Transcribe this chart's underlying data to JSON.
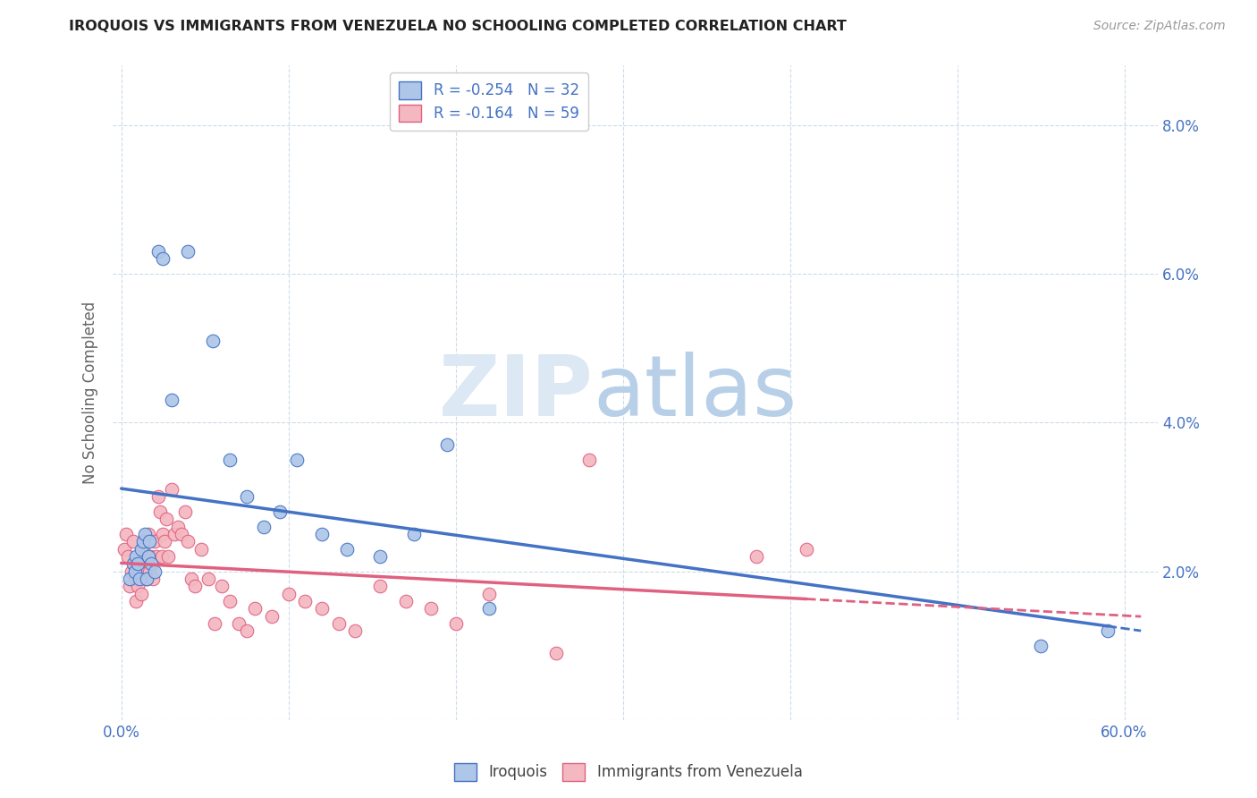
{
  "title": "IROQUOIS VS IMMIGRANTS FROM VENEZUELA NO SCHOOLING COMPLETED CORRELATION CHART",
  "source": "Source: ZipAtlas.com",
  "ylabel": "No Schooling Completed",
  "xlim": [
    -0.005,
    0.62
  ],
  "ylim": [
    0.0,
    0.088
  ],
  "xticks": [
    0.0,
    0.1,
    0.2,
    0.3,
    0.4,
    0.5,
    0.6
  ],
  "xticklabels_left": [
    "0.0%",
    "",
    "",
    "",
    "",
    "",
    "60.0%"
  ],
  "yticks": [
    0.0,
    0.02,
    0.04,
    0.06,
    0.08
  ],
  "ytick_labels_right": [
    "",
    "2.0%",
    "4.0%",
    "6.0%",
    "8.0%"
  ],
  "iroquois_color": "#aec6e8",
  "venezuela_color": "#f4b8c1",
  "iroquois_line_color": "#4472c4",
  "venezuela_line_color": "#e06080",
  "legend_label_blue": "R = -0.254   N = 32",
  "legend_label_pink": "R = -0.164   N = 59",
  "iroquois_x": [
    0.005,
    0.007,
    0.008,
    0.009,
    0.01,
    0.011,
    0.012,
    0.013,
    0.014,
    0.015,
    0.016,
    0.017,
    0.018,
    0.02,
    0.022,
    0.025,
    0.03,
    0.04,
    0.055,
    0.065,
    0.075,
    0.085,
    0.095,
    0.105,
    0.12,
    0.135,
    0.155,
    0.175,
    0.195,
    0.22,
    0.55,
    0.59
  ],
  "iroquois_y": [
    0.019,
    0.021,
    0.02,
    0.022,
    0.021,
    0.019,
    0.023,
    0.024,
    0.025,
    0.019,
    0.022,
    0.024,
    0.021,
    0.02,
    0.063,
    0.062,
    0.043,
    0.063,
    0.051,
    0.035,
    0.03,
    0.026,
    0.028,
    0.035,
    0.025,
    0.023,
    0.022,
    0.025,
    0.037,
    0.015,
    0.01,
    0.012
  ],
  "venezuela_x": [
    0.002,
    0.003,
    0.004,
    0.005,
    0.006,
    0.007,
    0.008,
    0.009,
    0.01,
    0.01,
    0.011,
    0.012,
    0.013,
    0.014,
    0.015,
    0.016,
    0.017,
    0.018,
    0.019,
    0.02,
    0.021,
    0.022,
    0.023,
    0.024,
    0.025,
    0.026,
    0.027,
    0.028,
    0.03,
    0.032,
    0.034,
    0.036,
    0.038,
    0.04,
    0.042,
    0.044,
    0.048,
    0.052,
    0.056,
    0.06,
    0.065,
    0.07,
    0.075,
    0.08,
    0.09,
    0.1,
    0.11,
    0.12,
    0.13,
    0.14,
    0.155,
    0.17,
    0.185,
    0.2,
    0.22,
    0.26,
    0.28,
    0.38,
    0.41
  ],
  "venezuela_y": [
    0.023,
    0.025,
    0.022,
    0.018,
    0.02,
    0.024,
    0.019,
    0.016,
    0.021,
    0.018,
    0.02,
    0.017,
    0.023,
    0.022,
    0.019,
    0.025,
    0.02,
    0.022,
    0.019,
    0.024,
    0.022,
    0.03,
    0.028,
    0.022,
    0.025,
    0.024,
    0.027,
    0.022,
    0.031,
    0.025,
    0.026,
    0.025,
    0.028,
    0.024,
    0.019,
    0.018,
    0.023,
    0.019,
    0.013,
    0.018,
    0.016,
    0.013,
    0.012,
    0.015,
    0.014,
    0.017,
    0.016,
    0.015,
    0.013,
    0.012,
    0.018,
    0.016,
    0.015,
    0.013,
    0.017,
    0.009,
    0.035,
    0.022,
    0.023
  ]
}
